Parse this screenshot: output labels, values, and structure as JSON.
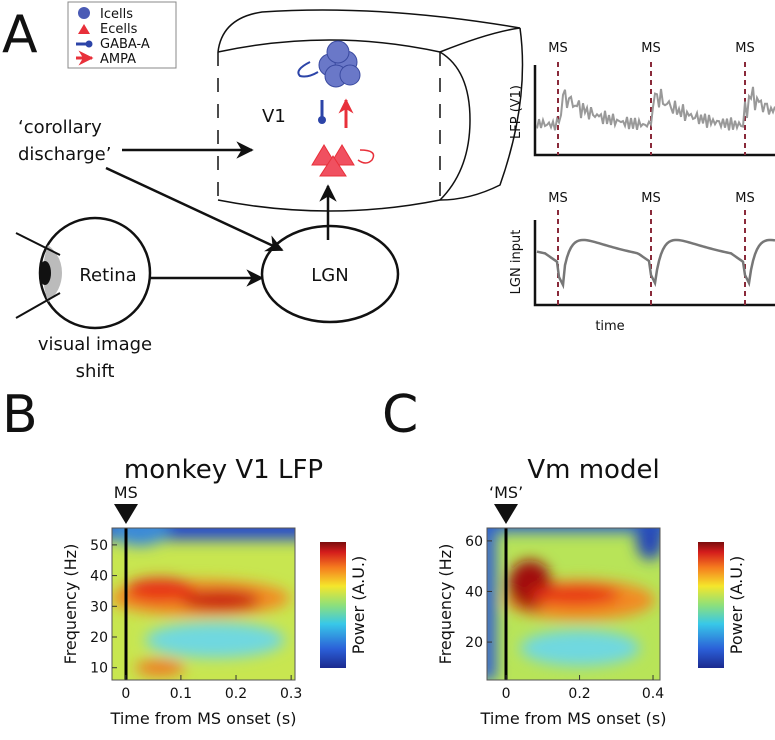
{
  "panel_a": {
    "label": "A",
    "legend": [
      "Icells",
      "Ecells",
      "GABA-A",
      "AMPA"
    ],
    "v1": "V1",
    "corollary": [
      "‘corollary",
      "discharge’"
    ],
    "retina": "Retina",
    "lgn": "LGN",
    "visual": [
      "visual image",
      "shift"
    ],
    "ms_top": [
      "MS",
      "MS",
      "MS"
    ],
    "lfp_ylabel": "LFP (V1)",
    "ms_bottom": [
      "MS",
      "MS",
      "MS"
    ],
    "lgn_ylabel": "LGN input",
    "time": "time"
  },
  "panel_b": {
    "label": "B",
    "title": "monkey V1 LFP",
    "marker": "MS",
    "xlabel": "Time from MS onset (s)",
    "ylabel": "Frequency (Hz)",
    "colorbar": "Power (A.U.)",
    "xlim": [
      -0.025,
      0.307
    ],
    "xticks": [
      0,
      0.1,
      0.2,
      0.3
    ],
    "ylim": [
      6,
      55.5
    ],
    "yticks": [
      10,
      20,
      30,
      40,
      50
    ]
  },
  "panel_c": {
    "label": "C",
    "title": "Vm model",
    "marker": "‘MS’",
    "xlabel": "Time from MS onset (s)",
    "ylabel": "Frequency (Hz)",
    "colorbar": "Power (A.U.)",
    "xlim": [
      -0.052,
      0.419
    ],
    "xticks": [
      0,
      0.2,
      0.4
    ],
    "ylim": [
      5,
      65.1
    ],
    "yticks": [
      20,
      40,
      60
    ]
  }
}
